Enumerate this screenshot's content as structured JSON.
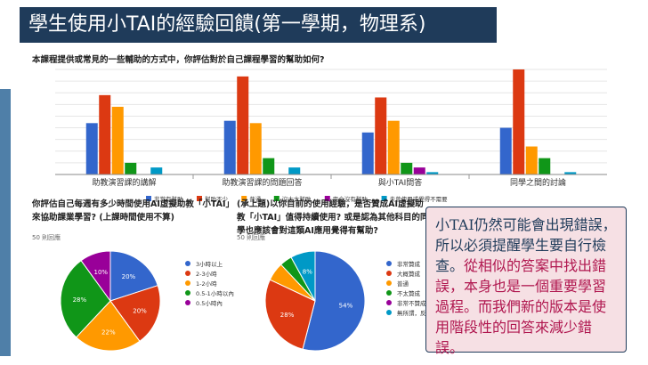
{
  "slide": {
    "title": "學生使用小TAI的經驗回饋(第一學期，物理系)",
    "colors": {
      "title_bg": "#1f3b5a",
      "callout_bg": "#f6e0e4",
      "highlight": "#b0174f"
    }
  },
  "callout": {
    "text_plain": "小TAI仍然可能會出現錯誤，所以必須提醒學生要自行檢查。",
    "text_highlight": "從相似的答案中找出錯誤，本身也是一個重要學習過程。而我們新的版本是使用階段性的回答來減少錯誤。"
  },
  "chart_data": [
    {
      "type": "bar",
      "title": "本課程提供或常見的一些輔助的方式中，你評估對於自己課程學習的幫助如何?",
      "categories": [
        "助教演習課的講解",
        "助教演習課的問題回答",
        "與小TAI問答",
        "同學之間的討論"
      ],
      "series": [
        {
          "name": "非常有幫助",
          "color": "#3366cc",
          "values": [
            22,
            23,
            18,
            20
          ]
        },
        {
          "name": "幫助不少",
          "color": "#dc3912",
          "values": [
            34,
            42,
            33,
            45
          ]
        },
        {
          "name": "普通",
          "color": "#ff9900",
          "values": [
            29,
            22,
            23,
            12
          ]
        },
        {
          "name": "沒太大幫助",
          "color": "#109618",
          "values": [
            5,
            7,
            5,
            7
          ]
        },
        {
          "name": "完全沒有幫助",
          "color": "#990099",
          "values": [
            0,
            0,
            3,
            0
          ]
        },
        {
          "name": "未曾使用或覺得不需要",
          "color": "#0099c6",
          "values": [
            3,
            3,
            1,
            1
          ]
        }
      ],
      "ylim": [
        0,
        45
      ],
      "grid": true,
      "legend": "bottom"
    },
    {
      "type": "pie",
      "title": "你評估自己每週有多少時間使用AI虛擬助教「小TAI」來協助課業學習? (上課時間使用不算)",
      "responses": "50 則回應",
      "labels": [
        "3小時以上",
        "2-3小時",
        "1-2小時",
        "0.5-1小時以內",
        "0.5小時內"
      ],
      "values": [
        20,
        20,
        22,
        28,
        10
      ],
      "colors": [
        "#3366cc",
        "#dc3912",
        "#ff9900",
        "#109618",
        "#990099"
      ],
      "slice_labels": [
        "20%",
        "20%",
        "22%",
        "28%",
        "10%"
      ],
      "legend": "right"
    },
    {
      "type": "pie",
      "title": "(承上題)以你目前的使用經驗，是否贊成AI虛擬助教「小TAI」值得持續使用? 或是認為其他科目的同學也應該會對這類AI應用覺得有幫助?",
      "responses": "50 則回應",
      "labels": [
        "非常贊成",
        "大概贊成",
        "普通",
        "不太贊成",
        "非常不贊成",
        "無所謂，反正選修"
      ],
      "values": [
        54,
        28,
        6,
        4,
        0,
        8
      ],
      "colors": [
        "#3366cc",
        "#dc3912",
        "#ff9900",
        "#109618",
        "#990099",
        "#0099c6"
      ],
      "slice_labels": [
        "54%",
        "28%",
        "",
        "",
        "",
        "8%"
      ],
      "legend": "right"
    }
  ]
}
